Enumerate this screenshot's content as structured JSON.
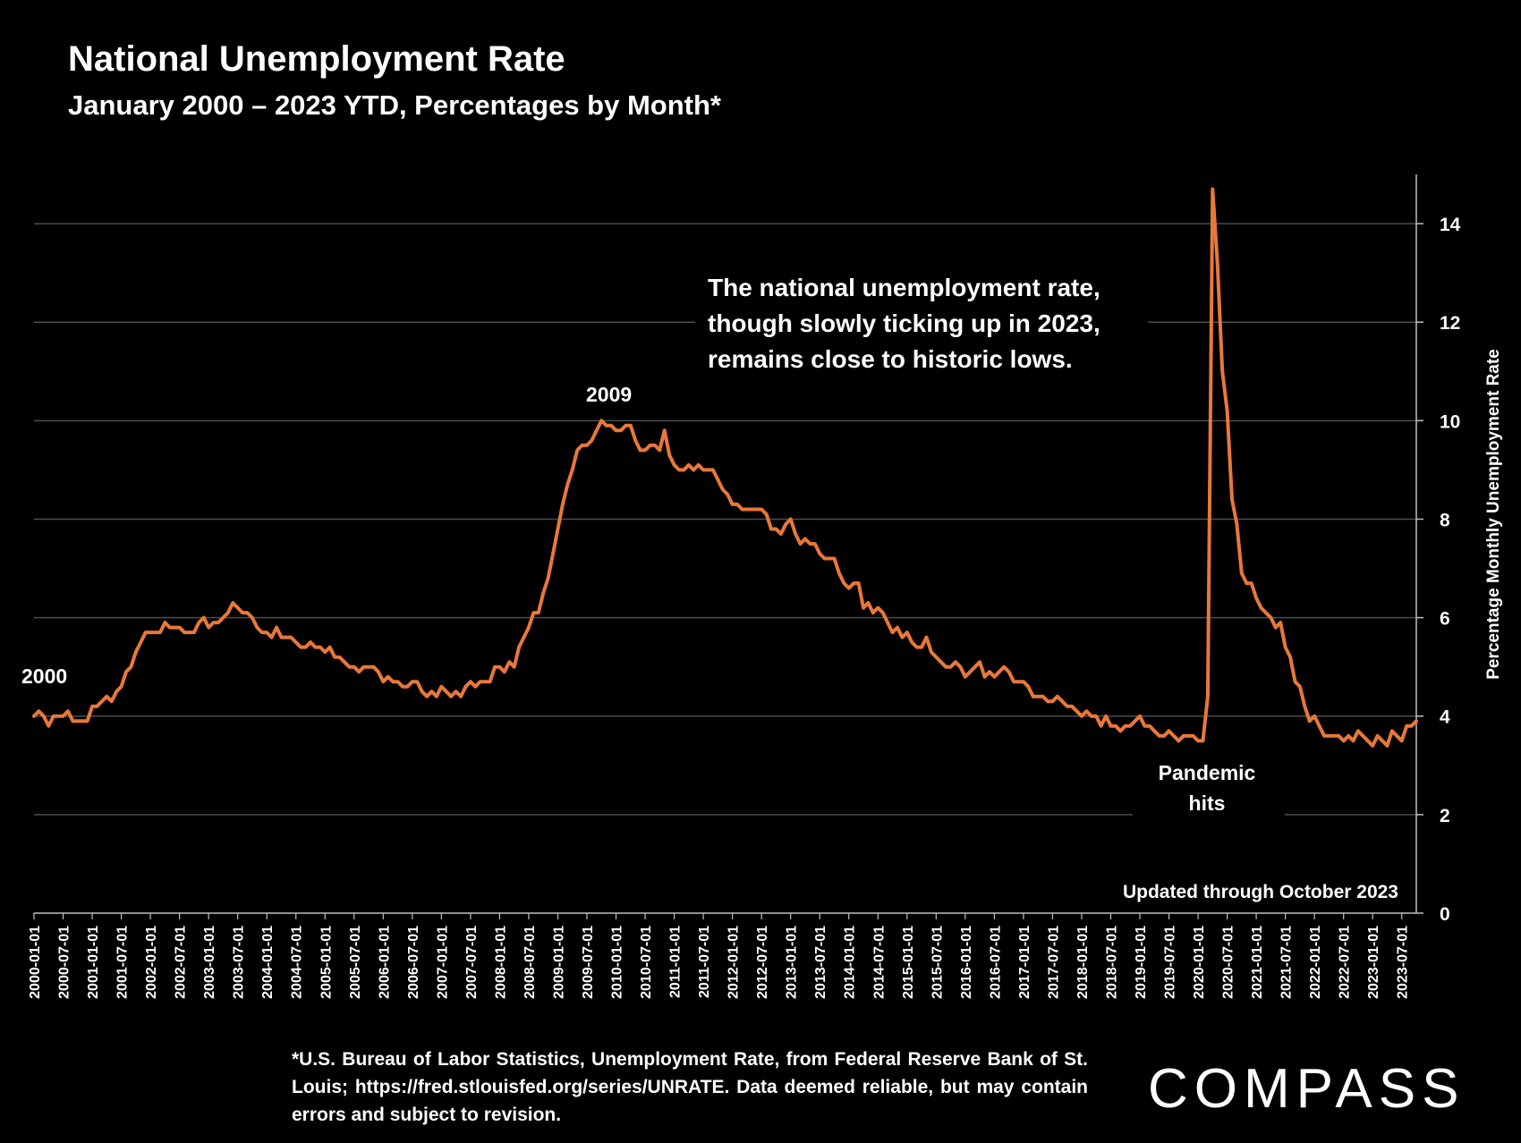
{
  "title": "National Unemployment Rate",
  "subtitle": "January 2000 – 2023 YTD, Percentages by Month*",
  "footnote": "*U.S. Bureau of Labor Statistics, Unemployment Rate, from Federal Reserve Bank of St. Louis; https://fred.stlouisfed.org/series/UNRATE. Data deemed reliable, but may contain errors and subject to revision.",
  "brand": {
    "name": "COMPASS",
    "color": "#ffffff"
  },
  "colors": {
    "line": "#e8783a",
    "grid": "#4d4d4d",
    "axis": "#bfbfbf",
    "text": "#ffffff",
    "background": "#000000"
  },
  "chart_data": {
    "type": "line",
    "title": "National Unemployment Rate",
    "ylabel": "Percentage Monthly Unemployment Rate",
    "xlabel": "",
    "ylim": [
      0,
      15
    ],
    "yticks": [
      0,
      2,
      4,
      6,
      8,
      10,
      12,
      14
    ],
    "y_axis_side": "right",
    "grid": true,
    "x_start": "2000-01",
    "x_tick_labels": [
      "2000-01-01",
      "2000-07-01",
      "2001-01-01",
      "2001-07-01",
      "2002-01-01",
      "2002-07-01",
      "2003-01-01",
      "2003-07-01",
      "2004-01-01",
      "2004-07-01",
      "2005-01-01",
      "2005-07-01",
      "2006-01-01",
      "2006-07-01",
      "2007-01-01",
      "2007-07-01",
      "2008-01-01",
      "2008-07-01",
      "2009-01-01",
      "2009-07-01",
      "2010-01-01",
      "2010-07-01",
      "2011-01-01",
      "2011-07-01",
      "2012-01-01",
      "2012-07-01",
      "2013-01-01",
      "2013-07-01",
      "2014-01-01",
      "2014-07-01",
      "2015-01-01",
      "2015-07-01",
      "2016-01-01",
      "2016-07-01",
      "2017-01-01",
      "2017-07-01",
      "2018-01-01",
      "2018-07-01",
      "2019-01-01",
      "2019-07-01",
      "2020-01-01",
      "2020-07-01",
      "2021-01-01",
      "2021-07-01",
      "2022-01-01",
      "2022-07-01",
      "2023-01-01",
      "2023-07-01"
    ],
    "series": [
      {
        "name": "Unemployment Rate",
        "values": [
          4.0,
          4.1,
          4.0,
          3.8,
          4.0,
          4.0,
          4.0,
          4.1,
          3.9,
          3.9,
          3.9,
          3.9,
          4.2,
          4.2,
          4.3,
          4.4,
          4.3,
          4.5,
          4.6,
          4.9,
          5.0,
          5.3,
          5.5,
          5.7,
          5.7,
          5.7,
          5.7,
          5.9,
          5.8,
          5.8,
          5.8,
          5.7,
          5.7,
          5.7,
          5.9,
          6.0,
          5.8,
          5.9,
          5.9,
          6.0,
          6.1,
          6.3,
          6.2,
          6.1,
          6.1,
          6.0,
          5.8,
          5.7,
          5.7,
          5.6,
          5.8,
          5.6,
          5.6,
          5.6,
          5.5,
          5.4,
          5.4,
          5.5,
          5.4,
          5.4,
          5.3,
          5.4,
          5.2,
          5.2,
          5.1,
          5.0,
          5.0,
          4.9,
          5.0,
          5.0,
          5.0,
          4.9,
          4.7,
          4.8,
          4.7,
          4.7,
          4.6,
          4.6,
          4.7,
          4.7,
          4.5,
          4.4,
          4.5,
          4.4,
          4.6,
          4.5,
          4.4,
          4.5,
          4.4,
          4.6,
          4.7,
          4.6,
          4.7,
          4.7,
          4.7,
          5.0,
          5.0,
          4.9,
          5.1,
          5.0,
          5.4,
          5.6,
          5.8,
          6.1,
          6.1,
          6.5,
          6.8,
          7.3,
          7.8,
          8.3,
          8.7,
          9.0,
          9.4,
          9.5,
          9.5,
          9.6,
          9.8,
          10.0,
          9.9,
          9.9,
          9.8,
          9.8,
          9.9,
          9.9,
          9.6,
          9.4,
          9.4,
          9.5,
          9.5,
          9.4,
          9.8,
          9.3,
          9.1,
          9.0,
          9.0,
          9.1,
          9.0,
          9.1,
          9.0,
          9.0,
          9.0,
          8.8,
          8.6,
          8.5,
          8.3,
          8.3,
          8.2,
          8.2,
          8.2,
          8.2,
          8.2,
          8.1,
          7.8,
          7.8,
          7.7,
          7.9,
          8.0,
          7.7,
          7.5,
          7.6,
          7.5,
          7.5,
          7.3,
          7.2,
          7.2,
          7.2,
          6.9,
          6.7,
          6.6,
          6.7,
          6.7,
          6.2,
          6.3,
          6.1,
          6.2,
          6.1,
          5.9,
          5.7,
          5.8,
          5.6,
          5.7,
          5.5,
          5.4,
          5.4,
          5.6,
          5.3,
          5.2,
          5.1,
          5.0,
          5.0,
          5.1,
          5.0,
          4.8,
          4.9,
          5.0,
          5.1,
          4.8,
          4.9,
          4.8,
          4.9,
          5.0,
          4.9,
          4.7,
          4.7,
          4.7,
          4.6,
          4.4,
          4.4,
          4.4,
          4.3,
          4.3,
          4.4,
          4.3,
          4.2,
          4.2,
          4.1,
          4.0,
          4.1,
          4.0,
          4.0,
          3.8,
          4.0,
          3.8,
          3.8,
          3.7,
          3.8,
          3.8,
          3.9,
          4.0,
          3.8,
          3.8,
          3.7,
          3.6,
          3.6,
          3.7,
          3.6,
          3.5,
          3.6,
          3.6,
          3.6,
          3.5,
          3.5,
          4.4,
          14.7,
          13.2,
          11.0,
          10.2,
          8.4,
          7.9,
          6.9,
          6.7,
          6.7,
          6.4,
          6.2,
          6.1,
          6.0,
          5.8,
          5.9,
          5.4,
          5.2,
          4.7,
          4.6,
          4.2,
          3.9,
          4.0,
          3.8,
          3.6,
          3.6,
          3.6,
          3.6,
          3.5,
          3.6,
          3.5,
          3.7,
          3.6,
          3.5,
          3.4,
          3.6,
          3.5,
          3.4,
          3.7,
          3.6,
          3.5,
          3.8,
          3.8,
          3.9
        ]
      }
    ],
    "annotations": {
      "label_2000": "2000",
      "label_2009": "2009",
      "message_line1": "The national unemployment rate,",
      "message_line2": "though slowly ticking up in 2023,",
      "message_line3": "remains close to historic lows.",
      "pandemic_line1": "Pandemic",
      "pandemic_line2": "hits",
      "updated": "Updated through October 2023"
    }
  }
}
